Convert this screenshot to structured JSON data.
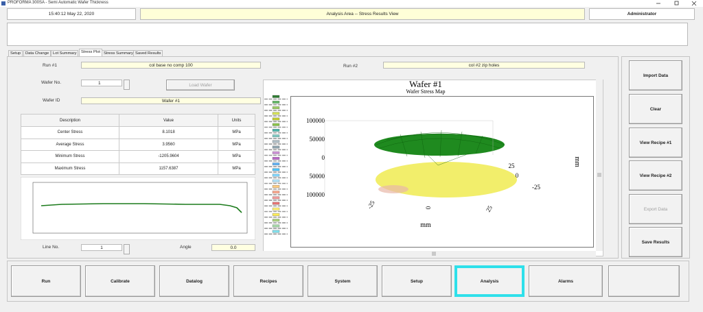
{
  "window": {
    "title": "PROFORMA 300SA - Semi Automatic Wafer Thickness"
  },
  "header": {
    "datetime": "15:40:12  May 22, 2020",
    "area": "Analysis Area  --  Stress Results View",
    "user": "Administrator"
  },
  "tabs": [
    {
      "label": "Setup",
      "active": false
    },
    {
      "label": "Data Change",
      "active": false
    },
    {
      "label": "Lot Summary",
      "active": false
    },
    {
      "label": "Stress Plot",
      "active": true
    },
    {
      "label": "Stress Summary",
      "active": false
    },
    {
      "label": "Saved Results",
      "active": false
    }
  ],
  "form": {
    "run1_label": "Run #1",
    "run1": "col base no comp 100",
    "run2_label": "Run #2",
    "run2": "col #2 zip holes",
    "wafer_no_label": "Wafer No.",
    "wafer_no": "1",
    "load_button": "Load Wafer",
    "wafer_id_label": "Wafer ID",
    "wafer_id": "Wafer #1",
    "line_no_label": "Line No.",
    "line_no": "1",
    "angle_label": "Angle",
    "angle": "0.0"
  },
  "table": {
    "headers": [
      "Description",
      "Value",
      "Units"
    ],
    "rows": [
      [
        "Center Stress",
        "8.1018",
        "MPa"
      ],
      [
        "Average Stress",
        "3.9560",
        "MPa"
      ],
      [
        "Minimum Stress",
        "-1205.9604",
        "MPa"
      ],
      [
        "Maximum Stress",
        "1157.6387",
        "MPa"
      ]
    ]
  },
  "stress_map": {
    "title": "Wafer #1",
    "subtitle": "Wafer Stress Map",
    "z_ticks": [
      "100000",
      "50000",
      "0",
      "50000",
      "100000"
    ],
    "y_ticks": [
      "25",
      "0",
      "-25"
    ],
    "x_ticks": [
      "-25",
      "0",
      "25"
    ],
    "x_label": "mm",
    "y_label": "mm"
  },
  "side_buttons": [
    {
      "label": "Import Data",
      "enabled": true
    },
    {
      "label": "Clear",
      "enabled": true
    },
    {
      "label": "View Recipe #1",
      "enabled": true
    },
    {
      "label": "View Recipe #2",
      "enabled": true
    },
    {
      "label": "Export Data",
      "enabled": false
    },
    {
      "label": "Save Results",
      "enabled": true
    }
  ],
  "nav_buttons": [
    {
      "label": "Run",
      "selected": false
    },
    {
      "label": "Calibrate",
      "selected": false
    },
    {
      "label": "Datalog",
      "selected": false
    },
    {
      "label": "Recipes",
      "selected": false
    },
    {
      "label": "System",
      "selected": false
    },
    {
      "label": "Setup",
      "selected": false
    },
    {
      "label": "Analysis",
      "selected": true
    },
    {
      "label": "Alarms",
      "selected": false
    }
  ]
}
